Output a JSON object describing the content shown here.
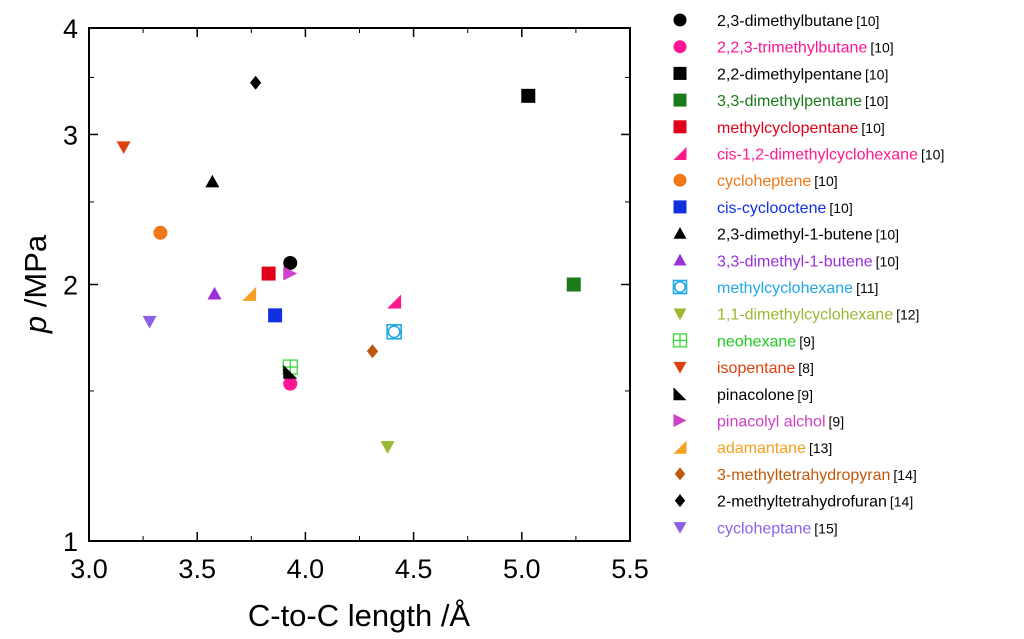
{
  "chart_data": {
    "type": "scatter",
    "xlabel": "C-to-C length /Å",
    "ylabel_italic": "p",
    "ylabel_rest": " /MPa",
    "xlim": [
      3.0,
      5.5
    ],
    "ylim": [
      1,
      4
    ],
    "yscale": "log",
    "x_ticks": [
      "3.0",
      "3.5",
      "4.0",
      "4.5",
      "5.0",
      "5.5"
    ],
    "y_ticks": [
      {
        "value": 1,
        "label": "1"
      },
      {
        "value": 2,
        "label": "2"
      },
      {
        "value": 3,
        "label": "3"
      },
      {
        "value": 4,
        "label": "4"
      }
    ],
    "legend_position": "right",
    "series": [
      {
        "name": "2,3-dimethylbutane",
        "ref": "[10]",
        "marker": "circle",
        "color": "#000000",
        "text_color": "#000000",
        "points": [
          {
            "x": 3.93,
            "y": 2.12
          }
        ]
      },
      {
        "name": "2,2,3-trimethylbutane",
        "ref": "[10]",
        "marker": "circle",
        "color": "#ff1493",
        "text_color": "#ff1493",
        "points": [
          {
            "x": 3.93,
            "y": 1.53
          }
        ]
      },
      {
        "name": "2,2-dimethylpentane",
        "ref": "[10]",
        "marker": "square",
        "color": "#000000",
        "text_color": "#000000",
        "points": [
          {
            "x": 5.03,
            "y": 3.33
          }
        ]
      },
      {
        "name": "3,3-dimethylpentane",
        "ref": "[10]",
        "marker": "square",
        "color": "#1a7a1a",
        "text_color": "#1a7a1a",
        "points": [
          {
            "x": 5.24,
            "y": 2.0
          }
        ]
      },
      {
        "name": "methylcyclopentane",
        "ref": "[10]",
        "marker": "square",
        "color": "#e0001a",
        "text_color": "#e0001a",
        "points": [
          {
            "x": 3.83,
            "y": 2.06
          }
        ]
      },
      {
        "name": "cis-1,2-dimethylcyclohexane",
        "ref": "[10]",
        "marker": "tri-ur",
        "color": "#ff1a8c",
        "text_color": "#ff1a8c",
        "points": [
          {
            "x": 4.41,
            "y": 1.91
          }
        ]
      },
      {
        "name": "cycloheptene",
        "ref": "[10]",
        "marker": "circle",
        "color": "#f07818",
        "text_color": "#f07818",
        "points": [
          {
            "x": 3.33,
            "y": 2.3
          }
        ]
      },
      {
        "name": "cis-cyclooctene",
        "ref": "[10]",
        "marker": "square",
        "color": "#1030e0",
        "text_color": "#1030e0",
        "points": [
          {
            "x": 3.86,
            "y": 1.84
          }
        ]
      },
      {
        "name": "2,3-dimethyl-1-butene",
        "ref": "[10]",
        "marker": "triangle-up",
        "color": "#000000",
        "text_color": "#000000",
        "points": [
          {
            "x": 3.57,
            "y": 2.64
          }
        ]
      },
      {
        "name": "3,3-dimethyl-1-butene",
        "ref": "[10]",
        "marker": "triangle-up",
        "color": "#9b30d8",
        "text_color": "#9b30d8",
        "points": [
          {
            "x": 3.58,
            "y": 1.95
          }
        ]
      },
      {
        "name": "methylcyclohexane",
        "ref": "[11]",
        "marker": "circle-square-open",
        "color": "#20a8e8",
        "text_color": "#20a8e8",
        "points": [
          {
            "x": 4.41,
            "y": 1.76
          }
        ]
      },
      {
        "name": "1,1-dimethylcyclohexane",
        "ref": "[12]",
        "marker": "triangle-down",
        "color": "#9ab830",
        "text_color": "#9ab830",
        "points": [
          {
            "x": 4.38,
            "y": 1.29
          }
        ]
      },
      {
        "name": "neohexane",
        "ref": "[9]",
        "marker": "square-grid",
        "color": "#38d838",
        "text_color": "#20cc20",
        "points": [
          {
            "x": 3.93,
            "y": 1.6
          }
        ]
      },
      {
        "name": "isopentane",
        "ref": "[8]",
        "marker": "triangle-down",
        "color": "#e04010",
        "text_color": "#e04010",
        "points": [
          {
            "x": 3.16,
            "y": 2.9
          }
        ]
      },
      {
        "name": "pinacolone",
        "ref": "[9]",
        "marker": "tri-ll",
        "color": "#000000",
        "text_color": "#000000",
        "points": [
          {
            "x": 3.93,
            "y": 1.58
          }
        ]
      },
      {
        "name": "pinacolyl alchol",
        "ref": "[9]",
        "marker": "tri-ul",
        "color": "#d040c8",
        "text_color": "#d040c8",
        "points": [
          {
            "x": 3.93,
            "y": 2.06
          }
        ]
      },
      {
        "name": "adamantane",
        "ref": "[13]",
        "marker": "tri-lr",
        "color": "#f5a020",
        "text_color": "#f5a020",
        "points": [
          {
            "x": 3.74,
            "y": 1.95
          }
        ]
      },
      {
        "name": "3-methyltetrahydropyran",
        "ref": "[14]",
        "marker": "diamond",
        "color": "#c0580c",
        "text_color": "#c0580c",
        "points": [
          {
            "x": 4.31,
            "y": 1.67
          }
        ]
      },
      {
        "name": "2-methyltetrahydrofuran",
        "ref": "[14]",
        "marker": "diamond",
        "color": "#000000",
        "text_color": "#000000",
        "points": [
          {
            "x": 3.77,
            "y": 3.45
          }
        ]
      },
      {
        "name": "cycloheptane",
        "ref": "[15]",
        "marker": "triangle-down",
        "color": "#8a60e8",
        "text_color": "#8a60e8",
        "points": [
          {
            "x": 3.28,
            "y": 1.81
          }
        ]
      }
    ]
  }
}
